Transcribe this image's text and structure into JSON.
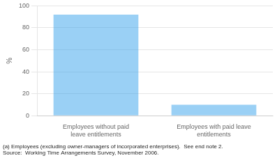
{
  "chart_data": {
    "type": "bar",
    "categories": [
      "Employees without paid leave entitlements",
      "Employees with paid leave entitlements"
    ],
    "values": [
      92,
      10
    ],
    "ylabel": "%",
    "ylim": [
      0,
      100
    ],
    "yticks": [
      0,
      20,
      40,
      60,
      80,
      100
    ],
    "grid": true,
    "annotations": [
      "(a) Employees (excluding owner-managers of incorporated enterprises).  See end note 2.",
      "Source:  Working Time Arrangements Survey, November 2006."
    ]
  }
}
